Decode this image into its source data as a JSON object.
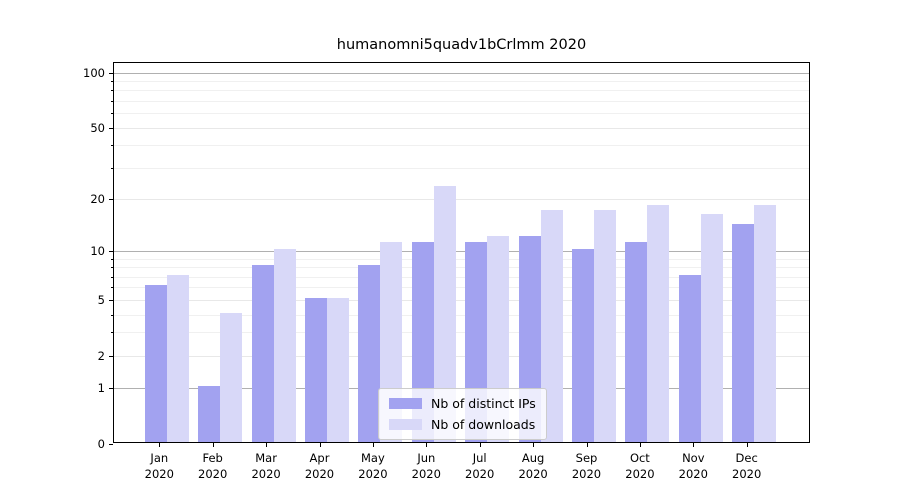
{
  "title": "humanomni5quadv1bCrlmm 2020",
  "colors": {
    "bar_distinct_ips": "#a2a2f0",
    "bar_downloads": "#d8d8f8",
    "grid_minor": "#f0f0f0",
    "grid_major": "#e8e8e8",
    "grid_emphasis": "#b0b0b0",
    "axis": "#000000",
    "legend_border": "#cccccc"
  },
  "legend": {
    "position": "lower center",
    "items": [
      {
        "label": "Nb of distinct IPs",
        "color_key": "bar_distinct_ips"
      },
      {
        "label": "Nb of downloads",
        "color_key": "bar_downloads"
      }
    ]
  },
  "chart_data": {
    "type": "bar",
    "title": "humanomni5quadv1bCrlmm 2020",
    "y_scale": "log10(1+v)",
    "categories": [
      "Jan",
      "Feb",
      "Mar",
      "Apr",
      "May",
      "Jun",
      "Jul",
      "Aug",
      "Sep",
      "Oct",
      "Nov",
      "Dec"
    ],
    "year_label": "2020",
    "series": [
      {
        "name": "Nb of distinct IPs",
        "color_key": "bar_distinct_ips",
        "values": [
          6,
          1,
          8,
          5,
          8,
          11,
          11,
          12,
          10,
          11,
          7,
          14
        ]
      },
      {
        "name": "Nb of downloads",
        "color_key": "bar_downloads",
        "values": [
          7,
          4,
          10,
          5,
          11,
          23,
          12,
          17,
          17,
          18,
          16,
          18
        ]
      }
    ],
    "y_ticks_labeled": [
      0,
      1,
      2,
      5,
      10,
      20,
      50,
      100
    ],
    "y_ticks_minor": [
      3,
      4,
      6,
      7,
      8,
      9,
      30,
      40,
      60,
      70,
      80,
      90
    ],
    "y_gridlines_emphasized": [
      1,
      10,
      100
    ],
    "ylim": [
      0,
      113
    ],
    "grid": "horizontal",
    "xlabel": "",
    "ylabel": ""
  }
}
